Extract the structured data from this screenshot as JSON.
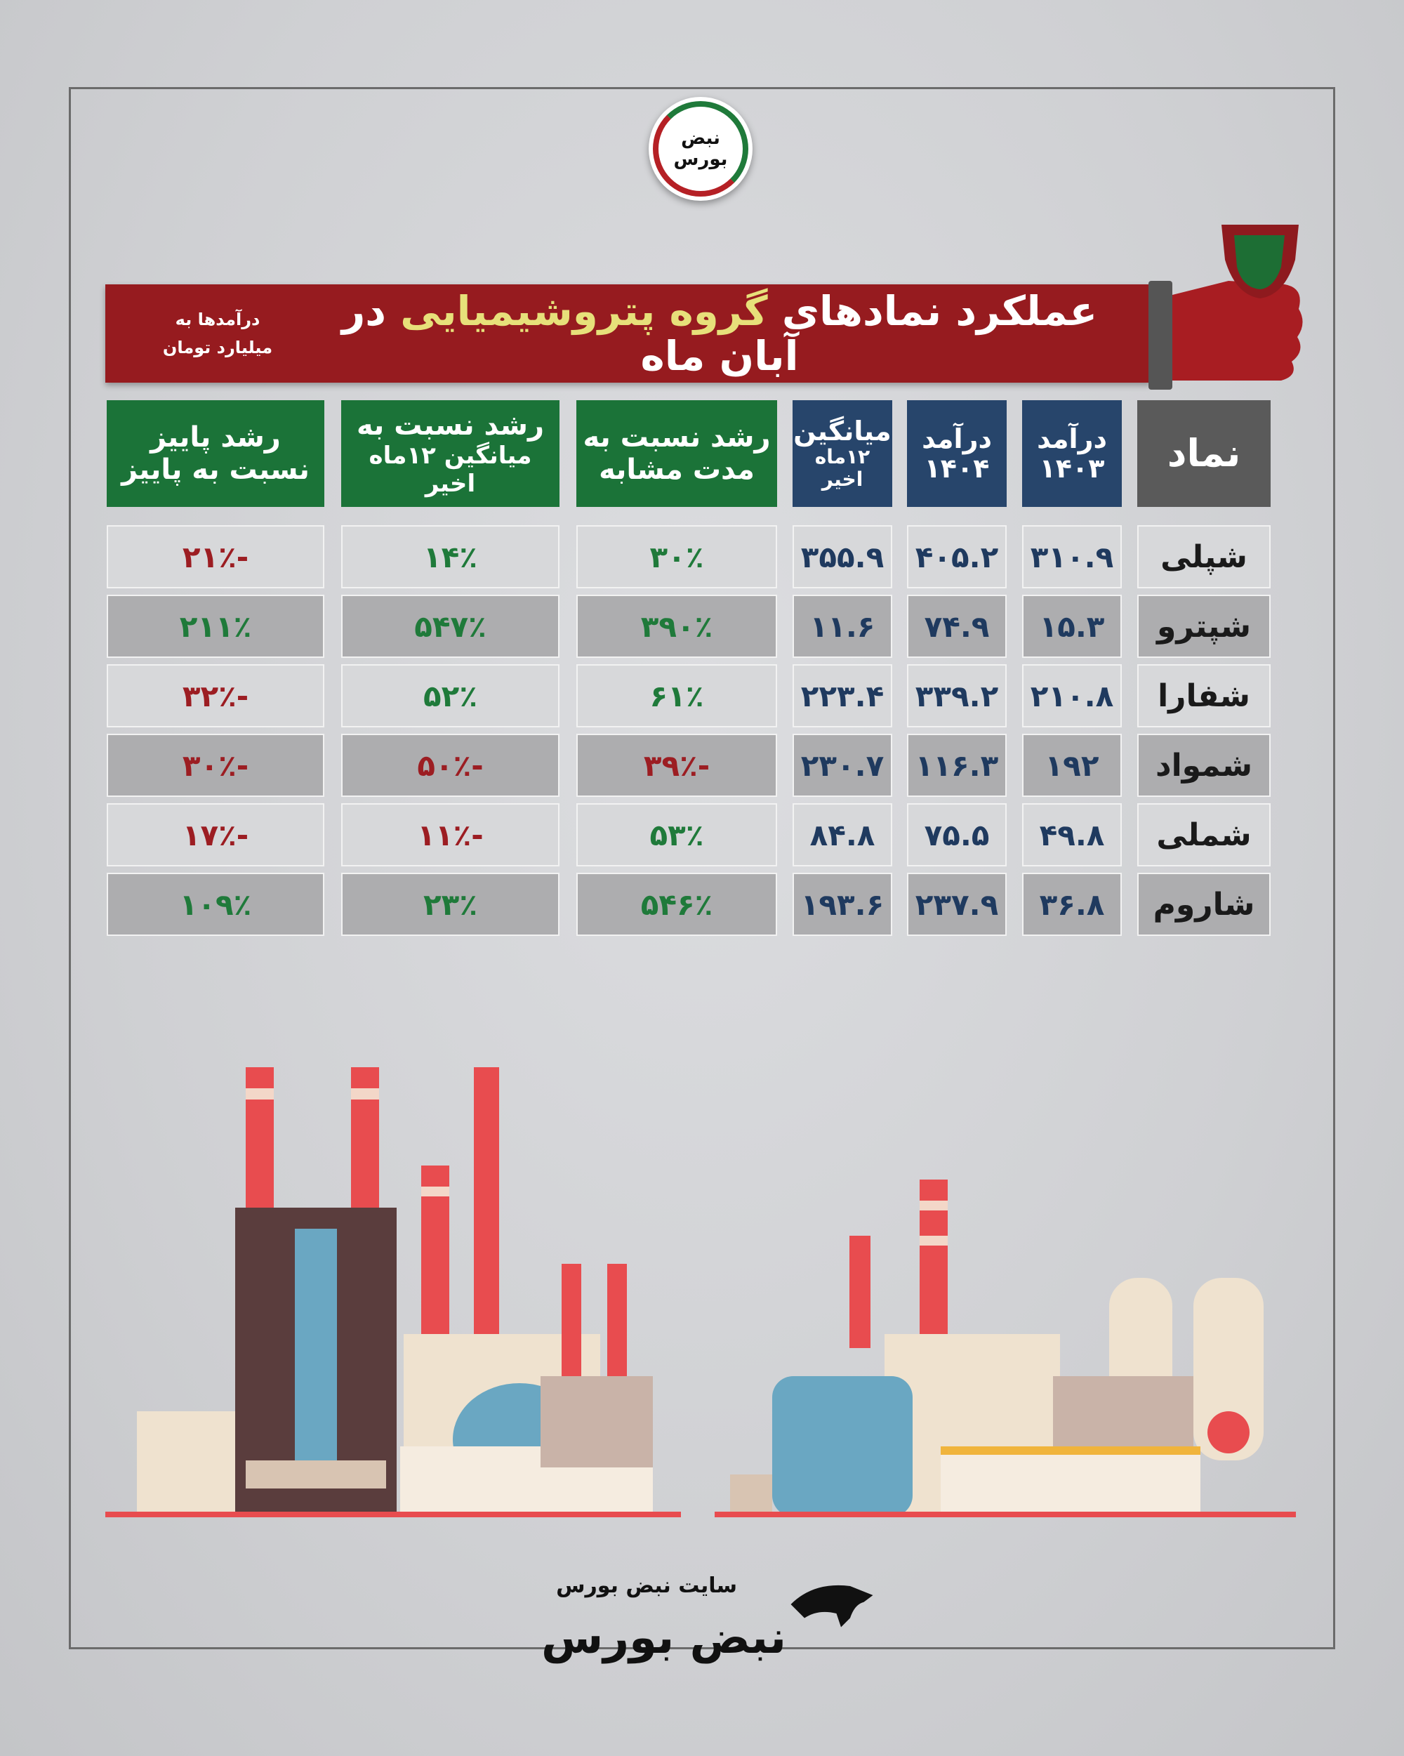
{
  "logo": {
    "line1": "نبض",
    "line2": "بورس"
  },
  "banner": {
    "title_part1": "عملکرد نمادهای",
    "title_highlight": "گروه پتروشیمیایی",
    "title_part2": "در آبان ماه",
    "unit_line1": "درآمدها به",
    "unit_line2": "میلیارد تومان"
  },
  "colors": {
    "banner": "#961b1f",
    "highlight": "#e7e07a",
    "header_green": "#1b7338",
    "header_blue": "#27456b",
    "header_gray": "#5a5a5a",
    "positive": "#1f7a3a",
    "negative": "#9c1d22"
  },
  "table": {
    "headers": [
      {
        "l1": "نماد",
        "l2": ""
      },
      {
        "l1": "درآمد",
        "l2": "۱۴۰۳"
      },
      {
        "l1": "درآمد",
        "l2": "۱۴۰۴"
      },
      {
        "l1": "میانگین",
        "l2": "۱۲ماه اخیر"
      },
      {
        "l1": "رشد نسبت به",
        "l2": "مدت مشابه"
      },
      {
        "l1": "رشد نسبت به",
        "l2": "میانگین ۱۲ماه اخیر"
      },
      {
        "l1": "رشد پاییز",
        "l2": "نسبت به پاییز"
      }
    ],
    "rows": [
      {
        "name": "شپلی",
        "rev1403": "۳۱۰.۹",
        "rev1404": "۴۰۵.۲",
        "avg12": "۳۵۵.۹",
        "g_yoy": "۳۰٪",
        "g_avg": "۱۴٪",
        "g_fall": "-۲۱٪"
      },
      {
        "name": "شپترو",
        "rev1403": "۱۵.۳",
        "rev1404": "۷۴.۹",
        "avg12": "۱۱.۶",
        "g_yoy": "۳۹۰٪",
        "g_avg": "۵۴۷٪",
        "g_fall": "۲۱۱٪"
      },
      {
        "name": "شفارا",
        "rev1403": "۲۱۰.۸",
        "rev1404": "۳۳۹.۲",
        "avg12": "۲۲۳.۴",
        "g_yoy": "۶۱٪",
        "g_avg": "۵۲٪",
        "g_fall": "-۳۲٪"
      },
      {
        "name": "شمواد",
        "rev1403": "۱۹۲",
        "rev1404": "۱۱۶.۳",
        "avg12": "۲۳۰.۷",
        "g_yoy": "-۳۹٪",
        "g_avg": "-۵۰٪",
        "g_fall": "-۳۰٪"
      },
      {
        "name": "شملی",
        "rev1403": "۴۹.۸",
        "rev1404": "۷۵.۵",
        "avg12": "۸۴.۸",
        "g_yoy": "۵۳٪",
        "g_avg": "-۱۱٪",
        "g_fall": "-۱۷٪"
      },
      {
        "name": "شاروم",
        "rev1403": "۳۶.۸",
        "rev1404": "۲۳۷.۹",
        "avg12": "۱۹۳.۶",
        "g_yoy": "۵۴۶٪",
        "g_avg": "۲۳٪",
        "g_fall": "۱۰۹٪"
      }
    ]
  },
  "footer": {
    "site": "سایت نبض بورس",
    "brand": "نبض بورس"
  }
}
